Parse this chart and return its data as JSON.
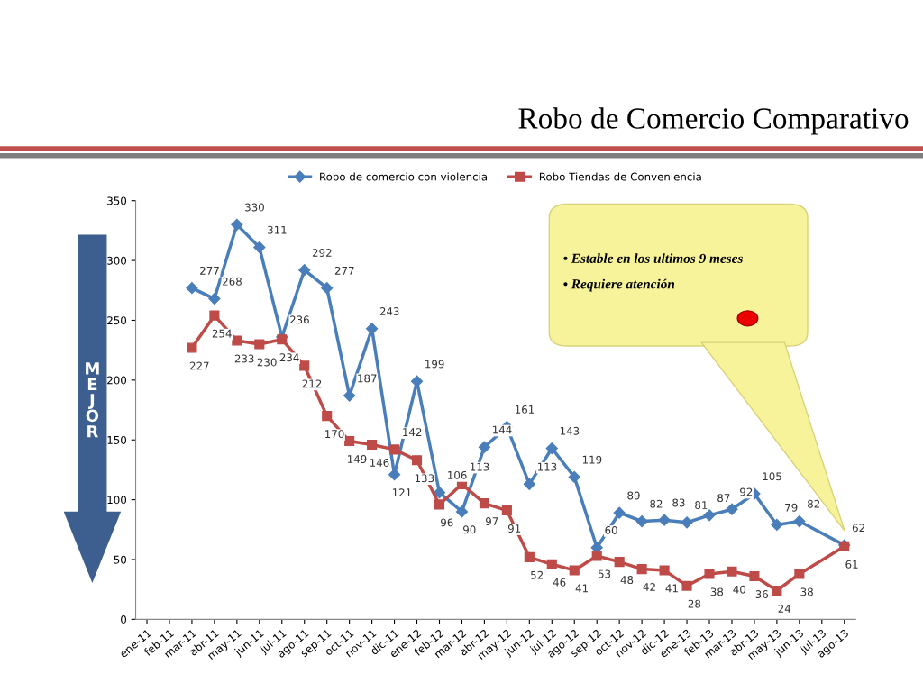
{
  "chart_data": {
    "type": "line",
    "title": "Robo de Comercio Comparativo",
    "categories": [
      "ene-11",
      "feb-11",
      "mar-11",
      "abr-11",
      "may-11",
      "jun-11",
      "jul-11",
      "ago-11",
      "sep-11",
      "oct-11",
      "nov-11",
      "dic-11",
      "ene-12",
      "feb-12",
      "mar-12",
      "abr-12",
      "may-12",
      "jun-12",
      "jul-12",
      "ago-12",
      "sep-12",
      "oct-12",
      "nov-12",
      "dic-12",
      "ene-13",
      "feb-13",
      "mar-13",
      "abr-13",
      "may-13",
      "jun-13",
      "jul-13",
      "ago-13"
    ],
    "series": [
      {
        "name": "Robo de comercio con violencia",
        "color": "#4a7ebb",
        "marker": "diamond",
        "values": [
          null,
          null,
          277,
          268,
          330,
          311,
          236,
          292,
          277,
          187,
          243,
          121,
          199,
          106,
          90,
          144,
          161,
          113,
          143,
          119,
          60,
          89,
          82,
          83,
          81,
          87,
          92,
          105,
          79,
          82,
          null,
          62
        ]
      },
      {
        "name": "Robo Tiendas de Conveniencia",
        "color": "#be4b48",
        "marker": "square",
        "values": [
          null,
          null,
          227,
          254,
          233,
          230,
          234,
          212,
          170,
          149,
          146,
          142,
          133,
          96,
          113,
          97,
          91,
          52,
          46,
          41,
          53,
          48,
          42,
          41,
          28,
          38,
          40,
          36,
          24,
          38,
          null,
          61
        ]
      }
    ],
    "ylim": [
      0,
      350
    ],
    "yticks": [
      0,
      50,
      100,
      150,
      200,
      250,
      300,
      350
    ],
    "data_labels": true,
    "legend": "top",
    "grid": false,
    "annotations": [
      "MEJOR",
      "• Estable en los ultimos 9 meses",
      "• Requiere atención"
    ]
  }
}
